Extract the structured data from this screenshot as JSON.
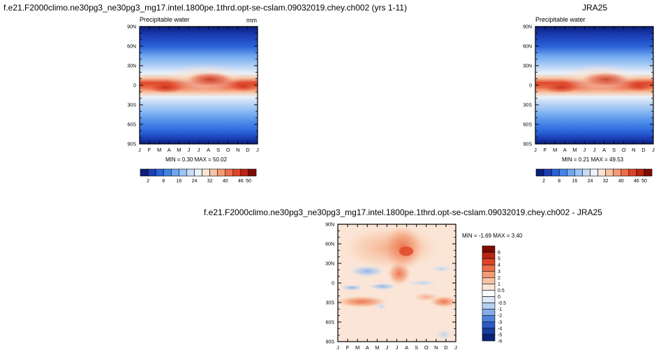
{
  "chart_data": [
    {
      "type": "heatmap",
      "title": "f.e21.F2000climo.ne30pg3_ne30pg3_mg17.intel.1800pe.1thrd.opt-se-cslam.09032019.chey.ch002 (yrs 1-11)",
      "subtitle": "Precipitable water",
      "units": "mm",
      "x_tick_labels": [
        "J",
        "F",
        "M",
        "A",
        "M",
        "J",
        "J",
        "A",
        "S",
        "O",
        "N",
        "D",
        "J"
      ],
      "y_tick_labels": [
        "90N",
        "60N",
        "30N",
        "0",
        "30S",
        "60S",
        "90S"
      ],
      "stats": "MIN =   0.30 MAX =  50.02",
      "colorbar_labels": [
        "2",
        "8",
        "16",
        "24",
        "32",
        "40",
        "46",
        "50"
      ],
      "min": 0.3,
      "max": 50.02
    },
    {
      "type": "heatmap",
      "title": "JRA25",
      "subtitle": "Precipitable water",
      "x_tick_labels": [
        "J",
        "F",
        "M",
        "A",
        "M",
        "J",
        "J",
        "A",
        "S",
        "O",
        "N",
        "D",
        "J"
      ],
      "y_tick_labels": [
        "90N",
        "60N",
        "30N",
        "0",
        "30S",
        "60S",
        "90S"
      ],
      "stats": "MIN =   0.21 MAX =  49.53",
      "colorbar_labels": [
        "2",
        "8",
        "16",
        "24",
        "32",
        "40",
        "46",
        "50"
      ],
      "min": 0.21,
      "max": 49.53
    },
    {
      "type": "heatmap",
      "title": "f.e21.F2000climo.ne30pg3_ne30pg3_mg17.intel.1800pe.1thrd.opt-se-cslam.09032019.chey.ch002 - JRA25",
      "x_tick_labels": [
        "J",
        "F",
        "M",
        "A",
        "M",
        "J",
        "J",
        "A",
        "S",
        "O",
        "N",
        "D",
        "J"
      ],
      "y_tick_labels": [
        "90N",
        "60N",
        "30N",
        "0",
        "30S",
        "60S",
        "90S"
      ],
      "stats": "MIN =  -1.69 MAX =   3.40",
      "colorbar_labels": [
        "6",
        "5",
        "4",
        "3",
        "2",
        "1",
        "0.5",
        "0",
        "-0.5",
        "-1",
        "-2",
        "-3",
        "-4",
        "-5",
        "-6"
      ],
      "min": -1.69,
      "max": 3.4
    }
  ],
  "colors": {
    "seq": [
      "#0a1e7c",
      "#1c3fb6",
      "#2a62d8",
      "#4384e6",
      "#6fa6ef",
      "#9cc4f4",
      "#c8dcf6",
      "#eaf1f8",
      "#fbe5d6",
      "#f7c3a3",
      "#f39c75",
      "#ec6e4b",
      "#dd4428",
      "#bb2412",
      "#7e0b03"
    ],
    "div": [
      "#7e0b03",
      "#bb2412",
      "#dd4428",
      "#ec6e4b",
      "#f39c75",
      "#f7c3a3",
      "#fbe5d6",
      "#ffffff",
      "#dde9f7",
      "#b5cfef",
      "#84acea",
      "#4f82dc",
      "#2c59c4",
      "#173d9f",
      "#0b2276"
    ]
  }
}
